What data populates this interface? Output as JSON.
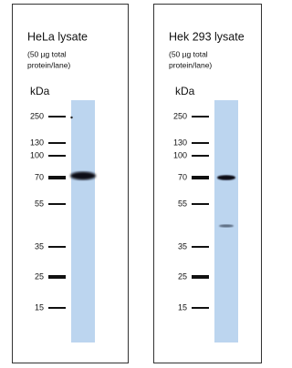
{
  "panels": [
    {
      "title": "HeLa lysate",
      "note": [
        "(50 µg total",
        "protein/lane)"
      ],
      "unit": "kDa",
      "markers": [
        250,
        130,
        100,
        70,
        55,
        35,
        25,
        15
      ]
    },
    {
      "title": "Hek 293 lysate",
      "note": [
        "(50 µg total",
        "protein/lane)"
      ],
      "unit": "kDa",
      "markers": [
        250,
        130,
        100,
        70,
        55,
        35,
        25,
        15
      ]
    }
  ]
}
